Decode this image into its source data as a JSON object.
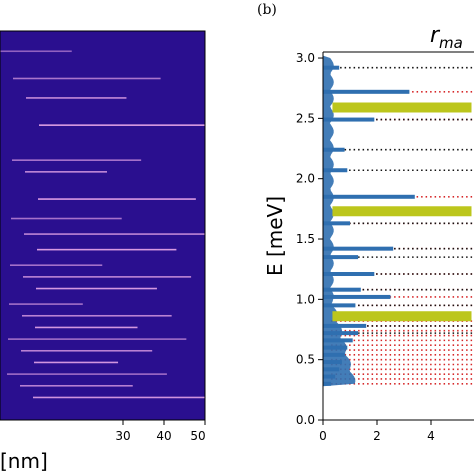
{
  "chart_data": [
    {
      "type": "heatmap",
      "panel": "",
      "xlabel": "[nm]",
      "x_ticks": [
        "30",
        "40",
        "50"
      ],
      "xlim": [
        0,
        50
      ],
      "colormap": "plasma-dark",
      "background_color": "#2a0f8f",
      "line_color": "#e6a6e8",
      "lines": [
        0.05,
        0.12,
        0.17,
        0.24,
        0.33,
        0.36,
        0.43,
        0.48,
        0.52,
        0.56,
        0.6,
        0.63,
        0.66,
        0.7,
        0.73,
        0.76,
        0.79,
        0.82,
        0.85,
        0.88,
        0.91,
        0.94
      ]
    },
    {
      "type": "bar",
      "orientation": "horizontal",
      "panel": "(b)",
      "title": "r",
      "title_sub": "ma",
      "ylabel": "E [meV]",
      "ylim": [
        0,
        3.05
      ],
      "y_ticks": [
        "0.0",
        "0.5",
        "1.0",
        "1.5",
        "2.0",
        "2.5",
        "3.0"
      ],
      "x_ticks": [
        "0",
        "2",
        "4"
      ],
      "xlim": [
        0,
        5.5
      ],
      "colors": {
        "bars": "#2f6fb0",
        "highlight": "#bcc61c",
        "dots_black": "#111111",
        "dots_red": "#d62728"
      },
      "highlight_levels": [
        {
          "energy": 2.59,
          "value": 5.5
        },
        {
          "energy": 1.73,
          "value": 5.5
        },
        {
          "energy": 0.86,
          "value": 5.5
        }
      ],
      "level_bars": [
        {
          "energy": 2.92,
          "value": 0.6
        },
        {
          "energy": 2.72,
          "value": 3.2
        },
        {
          "energy": 2.49,
          "value": 1.9
        },
        {
          "energy": 2.24,
          "value": 0.8
        },
        {
          "energy": 2.07,
          "value": 0.9
        },
        {
          "energy": 1.85,
          "value": 3.4
        },
        {
          "energy": 1.63,
          "value": 1.0
        },
        {
          "energy": 1.42,
          "value": 2.6
        },
        {
          "energy": 1.35,
          "value": 1.3
        },
        {
          "energy": 1.21,
          "value": 1.9
        },
        {
          "energy": 1.08,
          "value": 1.4
        },
        {
          "energy": 1.02,
          "value": 2.5
        },
        {
          "energy": 0.95,
          "value": 1.2
        },
        {
          "energy": 0.78,
          "value": 1.6
        },
        {
          "energy": 0.72,
          "value": 1.3
        },
        {
          "energy": 0.66,
          "value": 1.1
        },
        {
          "energy": 0.6,
          "value": 0.9
        },
        {
          "energy": 0.54,
          "value": 0.8
        },
        {
          "energy": 0.48,
          "value": 0.7
        },
        {
          "energy": 0.42,
          "value": 0.6
        },
        {
          "energy": 0.36,
          "value": 0.45
        },
        {
          "energy": 0.3,
          "value": 0.3
        }
      ],
      "dotted_black_levels": [
        2.92,
        2.49,
        2.24,
        2.07,
        1.63,
        1.42,
        1.35,
        1.21,
        1.08,
        0.95,
        0.78,
        0.72
      ],
      "dotted_red_levels": [
        2.72,
        2.49,
        1.85,
        1.63,
        1.42,
        1.21,
        1.08,
        1.02,
        0.95,
        0.82,
        0.78,
        0.74,
        0.7,
        0.66,
        0.62,
        0.58,
        0.54,
        0.5,
        0.46,
        0.42,
        0.38,
        0.34,
        0.3
      ]
    }
  ]
}
